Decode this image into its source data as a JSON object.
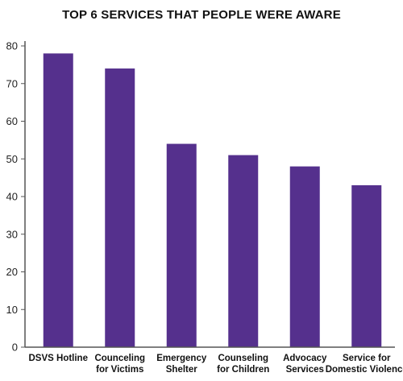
{
  "chart_data": {
    "type": "bar",
    "title": "TOP 6 SERVICES THAT PEOPLE WERE AWARE",
    "categories": [
      [
        "DSVS Hotline"
      ],
      [
        "Counceling",
        "for Victims"
      ],
      [
        "Emergency",
        "Shelter"
      ],
      [
        "Counseling",
        "for Children"
      ],
      [
        "Advocacy",
        "Services"
      ],
      [
        "Service for",
        "Domestic Violence"
      ]
    ],
    "values": [
      78,
      74,
      54,
      51,
      48,
      43
    ],
    "ylim": [
      0,
      80
    ],
    "yticks": [
      0,
      10,
      20,
      30,
      40,
      50,
      60,
      70,
      80
    ],
    "xlabel": "",
    "ylabel": "",
    "grid": false,
    "bar_color": "#55308d",
    "axis_color": "#555555"
  }
}
